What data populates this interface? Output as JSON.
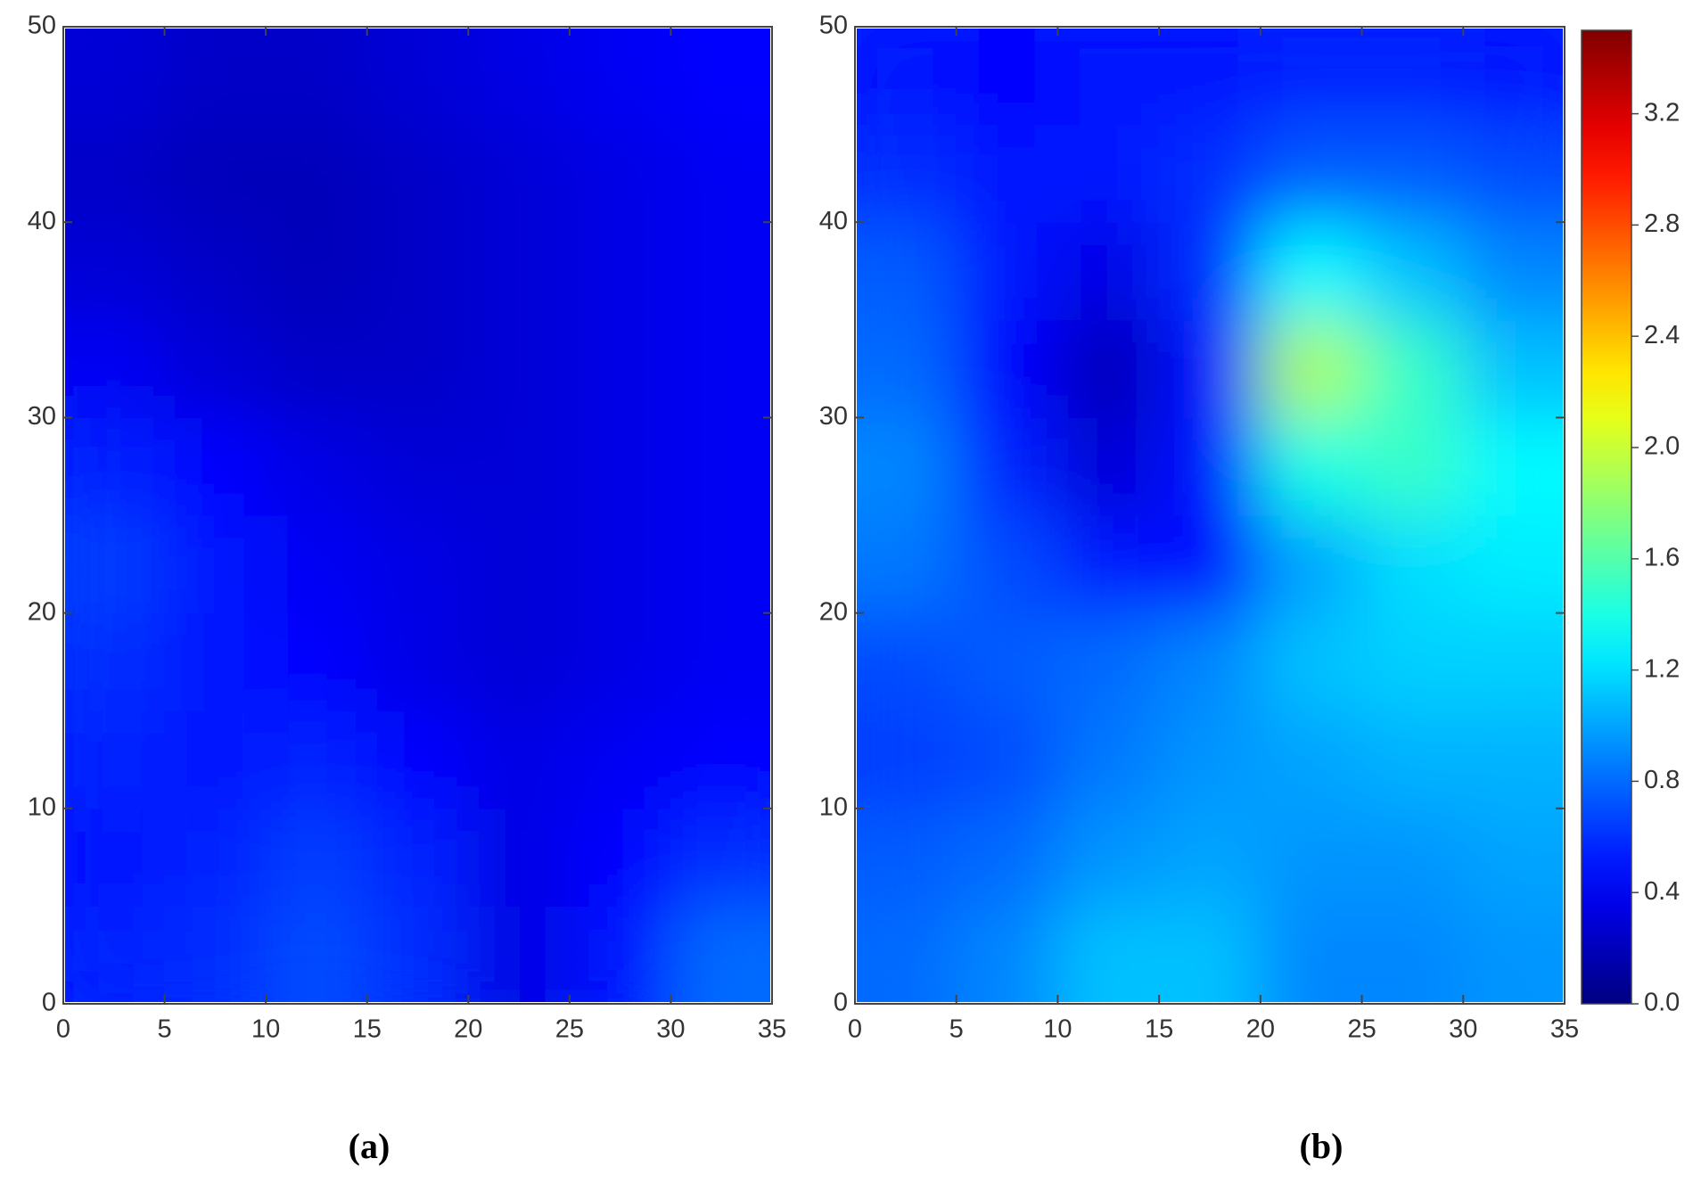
{
  "chart_data": [
    {
      "type": "heatmap",
      "label": "(a)",
      "colormap": "jet",
      "zlim": [
        0,
        3.5
      ],
      "xlim": [
        0,
        35
      ],
      "ylim": [
        0,
        50
      ],
      "xticks": [
        0,
        5,
        10,
        15,
        20,
        25,
        30,
        35
      ],
      "yticks": [
        0,
        10,
        20,
        30,
        40,
        50
      ],
      "x": [
        2.5,
        7.5,
        12.5,
        17.5,
        22.5,
        27.5,
        32.5
      ],
      "y": [
        2.5,
        7.5,
        12.5,
        17.5,
        22.5,
        27.5,
        32.5,
        37.5,
        42.5,
        47.5
      ],
      "z": [
        [
          0.55,
          0.6,
          0.7,
          0.6,
          0.35,
          0.5,
          0.8
        ],
        [
          0.5,
          0.55,
          0.65,
          0.55,
          0.35,
          0.45,
          0.6
        ],
        [
          0.55,
          0.5,
          0.55,
          0.45,
          0.35,
          0.4,
          0.45
        ],
        [
          0.6,
          0.5,
          0.45,
          0.35,
          0.3,
          0.35,
          0.4
        ],
        [
          0.65,
          0.5,
          0.4,
          0.35,
          0.3,
          0.35,
          0.4
        ],
        [
          0.55,
          0.45,
          0.35,
          0.3,
          0.3,
          0.35,
          0.4
        ],
        [
          0.4,
          0.3,
          0.25,
          0.25,
          0.3,
          0.35,
          0.4
        ],
        [
          0.3,
          0.25,
          0.2,
          0.25,
          0.3,
          0.35,
          0.4
        ],
        [
          0.25,
          0.2,
          0.2,
          0.25,
          0.3,
          0.35,
          0.4
        ],
        [
          0.3,
          0.25,
          0.25,
          0.3,
          0.35,
          0.4,
          0.45
        ]
      ]
    },
    {
      "type": "heatmap",
      "label": "(b)",
      "colormap": "jet",
      "zlim": [
        0,
        3.5
      ],
      "xlim": [
        0,
        35
      ],
      "ylim": [
        0,
        50
      ],
      "xticks": [
        0,
        5,
        10,
        15,
        20,
        25,
        30,
        35
      ],
      "yticks": [
        0,
        10,
        20,
        30,
        40,
        50
      ],
      "x": [
        2.5,
        7.5,
        12.5,
        17.5,
        22.5,
        27.5,
        32.5
      ],
      "y": [
        2.5,
        7.5,
        12.5,
        17.5,
        22.5,
        27.5,
        32.5,
        37.5,
        42.5,
        47.5
      ],
      "z": [
        [
          0.8,
          0.9,
          1.1,
          1.1,
          0.9,
          0.9,
          0.95
        ],
        [
          0.75,
          0.8,
          0.95,
          1.0,
          0.95,
          0.95,
          1.0
        ],
        [
          0.65,
          0.7,
          0.85,
          0.95,
          1.0,
          1.05,
          1.05
        ],
        [
          0.7,
          0.75,
          0.8,
          0.9,
          1.1,
          1.15,
          1.15
        ],
        [
          0.85,
          0.7,
          0.5,
          0.45,
          1.0,
          1.2,
          1.25
        ],
        [
          0.9,
          0.55,
          0.3,
          0.5,
          1.4,
          1.5,
          1.3
        ],
        [
          0.8,
          0.45,
          0.2,
          0.5,
          1.9,
          1.5,
          1.1
        ],
        [
          0.75,
          0.5,
          0.35,
          0.6,
          1.3,
          1.1,
          0.9
        ],
        [
          0.6,
          0.5,
          0.5,
          0.6,
          0.75,
          0.75,
          0.7
        ],
        [
          0.5,
          0.45,
          0.5,
          0.5,
          0.55,
          0.55,
          0.5
        ]
      ],
      "colorbar": {
        "lim": [
          0,
          3.5
        ],
        "ticks": [
          {
            "value": 0,
            "label": "0.0"
          },
          0.4,
          0.8,
          1.2,
          1.6,
          {
            "value": 2,
            "label": "2.0"
          },
          2.4,
          2.8,
          3.2
        ]
      }
    }
  ]
}
